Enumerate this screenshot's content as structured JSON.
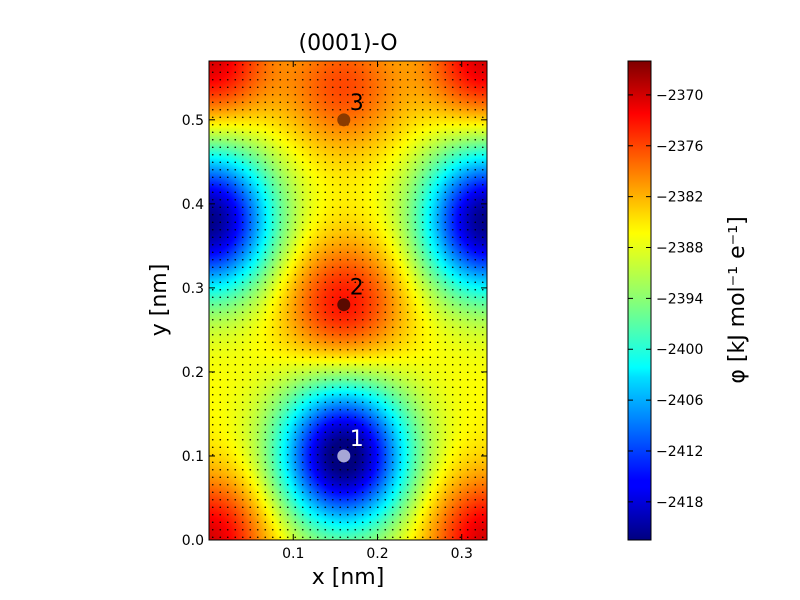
{
  "chart_data": {
    "type": "heatmap",
    "title": "(0001)-O",
    "xlabel": "x [nm]",
    "ylabel": "y [nm]",
    "xlim": [
      0.0,
      0.33
    ],
    "ylim": [
      0.0,
      0.57
    ],
    "x_ticks": [
      0.1,
      0.2,
      0.3
    ],
    "x_tick_labels": [
      "0.1",
      "0.2",
      "0.3"
    ],
    "y_ticks": [
      0.0,
      0.1,
      0.2,
      0.3,
      0.4,
      0.5
    ],
    "y_tick_labels": [
      "0.0",
      "0.1",
      "0.2",
      "0.3",
      "0.4",
      "0.5"
    ],
    "colormap": "jet",
    "colorbar": {
      "label": "φ [kJ mol⁻¹ e⁻¹]",
      "vmin": -2422.5,
      "vmax": -2366.0,
      "ticks": [
        -2370,
        -2376,
        -2382,
        -2388,
        -2394,
        -2400,
        -2406,
        -2412,
        -2418
      ],
      "tick_labels": [
        "−2370",
        "−2376",
        "−2382",
        "−2388",
        "−2394",
        "−2400",
        "−2406",
        "−2412",
        "−2418"
      ]
    },
    "field_features": [
      {
        "kind": "minimum",
        "x": 0.16,
        "y": 0.1,
        "value": -2422
      },
      {
        "kind": "minimum",
        "x": 0.0,
        "y": 0.38,
        "value": -2420
      },
      {
        "kind": "minimum",
        "x": 0.33,
        "y": 0.38,
        "value": -2420
      },
      {
        "kind": "maximum",
        "x": 0.16,
        "y": 0.28,
        "value": -2370
      },
      {
        "kind": "maximum",
        "x": 0.0,
        "y": 0.0,
        "value": -2367
      },
      {
        "kind": "maximum",
        "x": 0.33,
        "y": 0.0,
        "value": -2367
      },
      {
        "kind": "maximum",
        "x": 0.0,
        "y": 0.57,
        "value": -2367
      },
      {
        "kind": "maximum",
        "x": 0.33,
        "y": 0.57,
        "value": -2367
      },
      {
        "kind": "maximum",
        "x": 0.16,
        "y": 0.54,
        "value": -2374
      }
    ],
    "sites": [
      {
        "label": "1",
        "x": 0.16,
        "y": 0.1,
        "color": "#a6a6d6",
        "text_color": "#ffffff"
      },
      {
        "label": "2",
        "x": 0.16,
        "y": 0.28,
        "color": "#5a0a00",
        "text_color": "#000000"
      },
      {
        "label": "3",
        "x": 0.16,
        "y": 0.5,
        "color": "#8a3a00",
        "text_color": "#000000"
      }
    ]
  }
}
